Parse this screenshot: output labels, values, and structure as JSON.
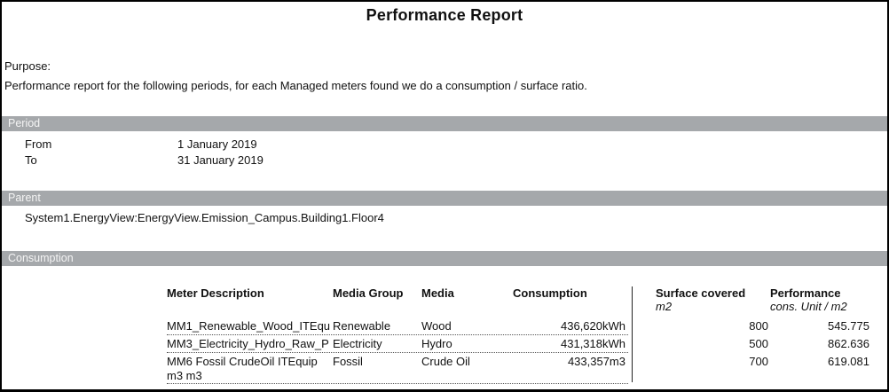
{
  "title": "Performance Report",
  "purpose": {
    "label": "Purpose:",
    "text": "Performance report for the following periods, for each Managed meters found we do a consumption / surface ratio."
  },
  "sections": {
    "period": "Period",
    "parent": "Parent",
    "consumption": "Consumption"
  },
  "period": {
    "from_label": "From",
    "from_value": "1 January 2019",
    "to_label": "To",
    "to_value": "31 January 2019"
  },
  "parent": {
    "path": "System1.EnergyView:EnergyView.Emission_Campus.Building1.Floor4"
  },
  "table": {
    "headers": {
      "meter": "Meter Description",
      "media_group": "Media Group",
      "media": "Media",
      "consumption": "Consumption",
      "surface": "Surface covered",
      "surface_unit": "m2",
      "performance": "Performance",
      "performance_unit": "cons. Unit / m2"
    },
    "rows": [
      {
        "meter": "MM1_Renewable_Wood_ITEqu",
        "media_group": "Renewable",
        "media": "Wood",
        "consumption": "436,620kWh",
        "surface": "800",
        "performance": "545.775"
      },
      {
        "meter": "MM3_Electricity_Hydro_Raw_P",
        "media_group": "Electricity",
        "media": "Hydro",
        "consumption": "431,318kWh",
        "surface": "500",
        "performance": "862.636"
      },
      {
        "meter": "MM6 Fossil CrudeOil ITEquip m3 m3",
        "media_group": "Fossil",
        "media": "Crude Oil",
        "consumption": "433,357m3",
        "surface": "700",
        "performance": "619.081"
      }
    ]
  },
  "colors": {
    "section_bar_background": "#a5a8ab",
    "section_bar_text": "#f4f4f4",
    "page_border": "#000000",
    "body_text": "#111111"
  }
}
